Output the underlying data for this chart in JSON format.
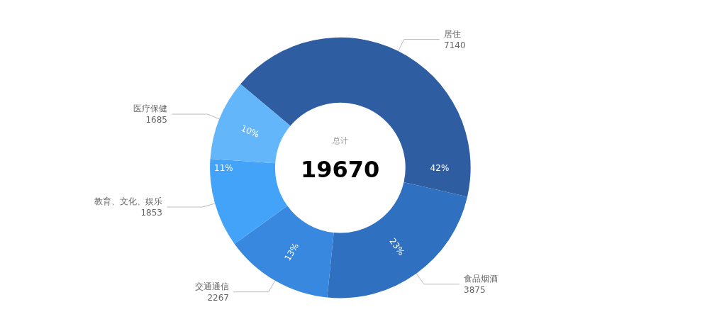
{
  "chart_data": {
    "type": "donut",
    "categories": [
      "居住",
      "食品烟酒",
      "交通通信",
      "教育、文化、娱乐",
      "医疗保健"
    ],
    "values": [
      7140,
      3875,
      2267,
      1853,
      1685
    ],
    "colors": [
      "#2f5da2",
      "#2f70c1",
      "#3888df",
      "#43a3f8",
      "#64b6fa"
    ],
    "data_labels": true,
    "annotations": [
      "总计",
      "19670",
      {
        "text": "42%",
        "x": "居住"
      },
      {
        "text": "23%",
        "x": "食品烟酒"
      },
      {
        "text": "13%",
        "x": "交通通信"
      },
      {
        "text": "11%",
        "x": "教育、文化、娱乐"
      },
      {
        "text": "10%",
        "x": "医疗保健"
      }
    ],
    "legend": false
  }
}
